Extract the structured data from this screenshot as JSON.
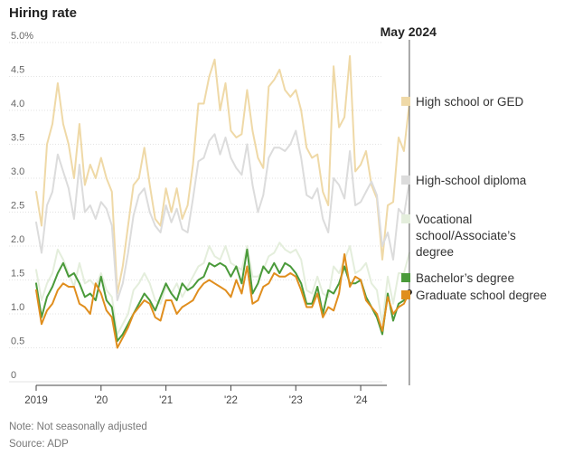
{
  "chart_data": {
    "type": "line",
    "title": "Hiring rate",
    "xlabel": "",
    "ylabel": "",
    "ylim": [
      0,
      5.0
    ],
    "xlim": [
      "2019-01",
      "2024-05"
    ],
    "y_ticks": [
      "5.0%",
      "4.5",
      "4.0",
      "3.5",
      "3.0",
      "2.5",
      "2.0",
      "1.5",
      "1.0",
      "0.5",
      "0"
    ],
    "x_ticks": [
      "2019",
      "'20",
      "'21",
      "'22",
      "'23",
      "'24"
    ],
    "annotation": "May 2024",
    "grid": "horizontal",
    "legend_placement": "right",
    "x_start": "2019-01",
    "series": [
      {
        "name": "High school or GED",
        "color": "#efd9a7",
        "values": [
          2.8,
          2.3,
          3.5,
          3.8,
          4.4,
          3.8,
          3.5,
          3.0,
          3.8,
          2.9,
          3.2,
          3.0,
          3.3,
          3.0,
          2.8,
          1.3,
          1.7,
          2.3,
          2.9,
          3.0,
          3.45,
          2.9,
          2.4,
          2.3,
          2.85,
          2.5,
          2.85,
          2.4,
          2.6,
          3.2,
          4.1,
          4.1,
          4.5,
          4.75,
          4.0,
          4.4,
          3.7,
          3.6,
          3.65,
          4.3,
          3.7,
          3.3,
          3.15,
          4.35,
          4.45,
          4.6,
          4.3,
          4.2,
          4.3,
          4.0,
          3.45,
          3.3,
          3.35,
          2.8,
          2.6,
          4.65,
          3.75,
          3.9,
          4.8,
          3.1,
          3.2,
          3.4,
          2.9,
          2.7,
          1.8,
          2.6,
          2.65,
          3.6,
          3.4,
          4.1
        ]
      },
      {
        "name": "High-school diploma",
        "color": "#dcdcdc",
        "values": [
          2.35,
          1.9,
          2.6,
          2.8,
          3.35,
          3.1,
          2.85,
          2.4,
          3.2,
          2.5,
          2.6,
          2.4,
          2.65,
          2.55,
          2.3,
          1.2,
          1.45,
          1.9,
          2.45,
          2.75,
          2.85,
          2.5,
          2.3,
          2.2,
          2.6,
          2.35,
          2.55,
          2.25,
          2.2,
          2.7,
          3.25,
          3.3,
          3.55,
          3.65,
          3.35,
          3.6,
          3.3,
          3.15,
          3.05,
          3.5,
          2.9,
          2.5,
          2.75,
          3.3,
          3.45,
          3.45,
          3.4,
          3.5,
          3.7,
          3.3,
          2.75,
          2.7,
          2.85,
          2.4,
          2.2,
          3.0,
          2.9,
          2.7,
          3.4,
          2.6,
          2.65,
          2.8,
          2.95,
          2.75,
          2.0,
          2.2,
          1.8,
          2.55,
          2.45,
          2.95
        ]
      },
      {
        "name": "Vocational school/Associate's degree",
        "color": "#e4eedc",
        "values": [
          1.65,
          1.2,
          1.45,
          1.6,
          1.95,
          1.8,
          1.6,
          1.4,
          1.75,
          1.45,
          1.5,
          1.4,
          1.6,
          1.35,
          1.25,
          0.7,
          0.85,
          1.0,
          1.35,
          1.45,
          1.6,
          1.45,
          1.2,
          1.15,
          1.4,
          1.3,
          1.45,
          1.25,
          1.4,
          1.55,
          1.7,
          1.75,
          2.0,
          1.85,
          1.8,
          2.0,
          1.75,
          1.7,
          1.65,
          2.0,
          1.55,
          1.55,
          1.65,
          1.85,
          1.9,
          2.05,
          1.95,
          1.9,
          1.95,
          1.8,
          1.35,
          1.3,
          1.55,
          1.3,
          1.25,
          1.7,
          1.6,
          1.8,
          2.0,
          1.6,
          1.65,
          1.75,
          1.45,
          1.35,
          0.85,
          1.55,
          1.15,
          1.6,
          1.6,
          1.9
        ]
      },
      {
        "name": "Bachelor's degree",
        "color": "#4a9a3a",
        "values": [
          1.45,
          0.95,
          1.25,
          1.4,
          1.6,
          1.75,
          1.55,
          1.6,
          1.45,
          1.25,
          1.3,
          1.2,
          1.55,
          1.2,
          1.1,
          0.6,
          0.7,
          0.85,
          1.0,
          1.15,
          1.3,
          1.2,
          1.05,
          1.25,
          1.45,
          1.3,
          1.2,
          1.45,
          1.35,
          1.4,
          1.5,
          1.55,
          1.75,
          1.7,
          1.75,
          1.7,
          1.55,
          1.7,
          1.45,
          1.95,
          1.3,
          1.45,
          1.7,
          1.6,
          1.75,
          1.6,
          1.75,
          1.7,
          1.6,
          1.45,
          1.15,
          1.15,
          1.4,
          1.0,
          1.35,
          1.3,
          1.45,
          1.7,
          1.45,
          1.45,
          1.5,
          1.25,
          1.1,
          0.95,
          0.7,
          1.3,
          0.9,
          1.15,
          1.2,
          1.32
        ]
      },
      {
        "name": "Graduate school degree",
        "color": "#e08e1e",
        "values": [
          1.35,
          0.85,
          1.05,
          1.15,
          1.35,
          1.45,
          1.4,
          1.4,
          1.15,
          1.1,
          1.0,
          1.45,
          1.3,
          1.05,
          0.95,
          0.5,
          0.65,
          0.8,
          1.0,
          1.1,
          1.2,
          1.15,
          0.95,
          0.9,
          1.2,
          1.2,
          1.0,
          1.1,
          1.15,
          1.2,
          1.35,
          1.45,
          1.5,
          1.45,
          1.4,
          1.35,
          1.25,
          1.5,
          1.3,
          1.7,
          1.15,
          1.2,
          1.4,
          1.45,
          1.6,
          1.55,
          1.55,
          1.6,
          1.55,
          1.35,
          1.1,
          1.1,
          1.3,
          0.95,
          1.1,
          1.05,
          1.3,
          1.88,
          1.4,
          1.55,
          1.5,
          1.2,
          1.1,
          1.0,
          0.75,
          1.25,
          1.0,
          1.1,
          1.15,
          1.32
        ]
      }
    ]
  },
  "legend": [
    {
      "lines": [
        "High school or GED"
      ],
      "color": "#efd9a7"
    },
    {
      "lines": [
        "High-school diploma"
      ],
      "color": "#dcdcdc"
    },
    {
      "lines": [
        "Vocational",
        "school/Associate’s",
        "degree"
      ],
      "color": "#e4eedc"
    },
    {
      "lines": [
        "Bachelor’s degree"
      ],
      "color": "#4a9a3a"
    },
    {
      "lines": [
        "Graduate school degree"
      ],
      "color": "#e08e1e"
    }
  ],
  "footer": {
    "note": "Note: Not seasonally adjusted",
    "source": "Source: ADP"
  }
}
